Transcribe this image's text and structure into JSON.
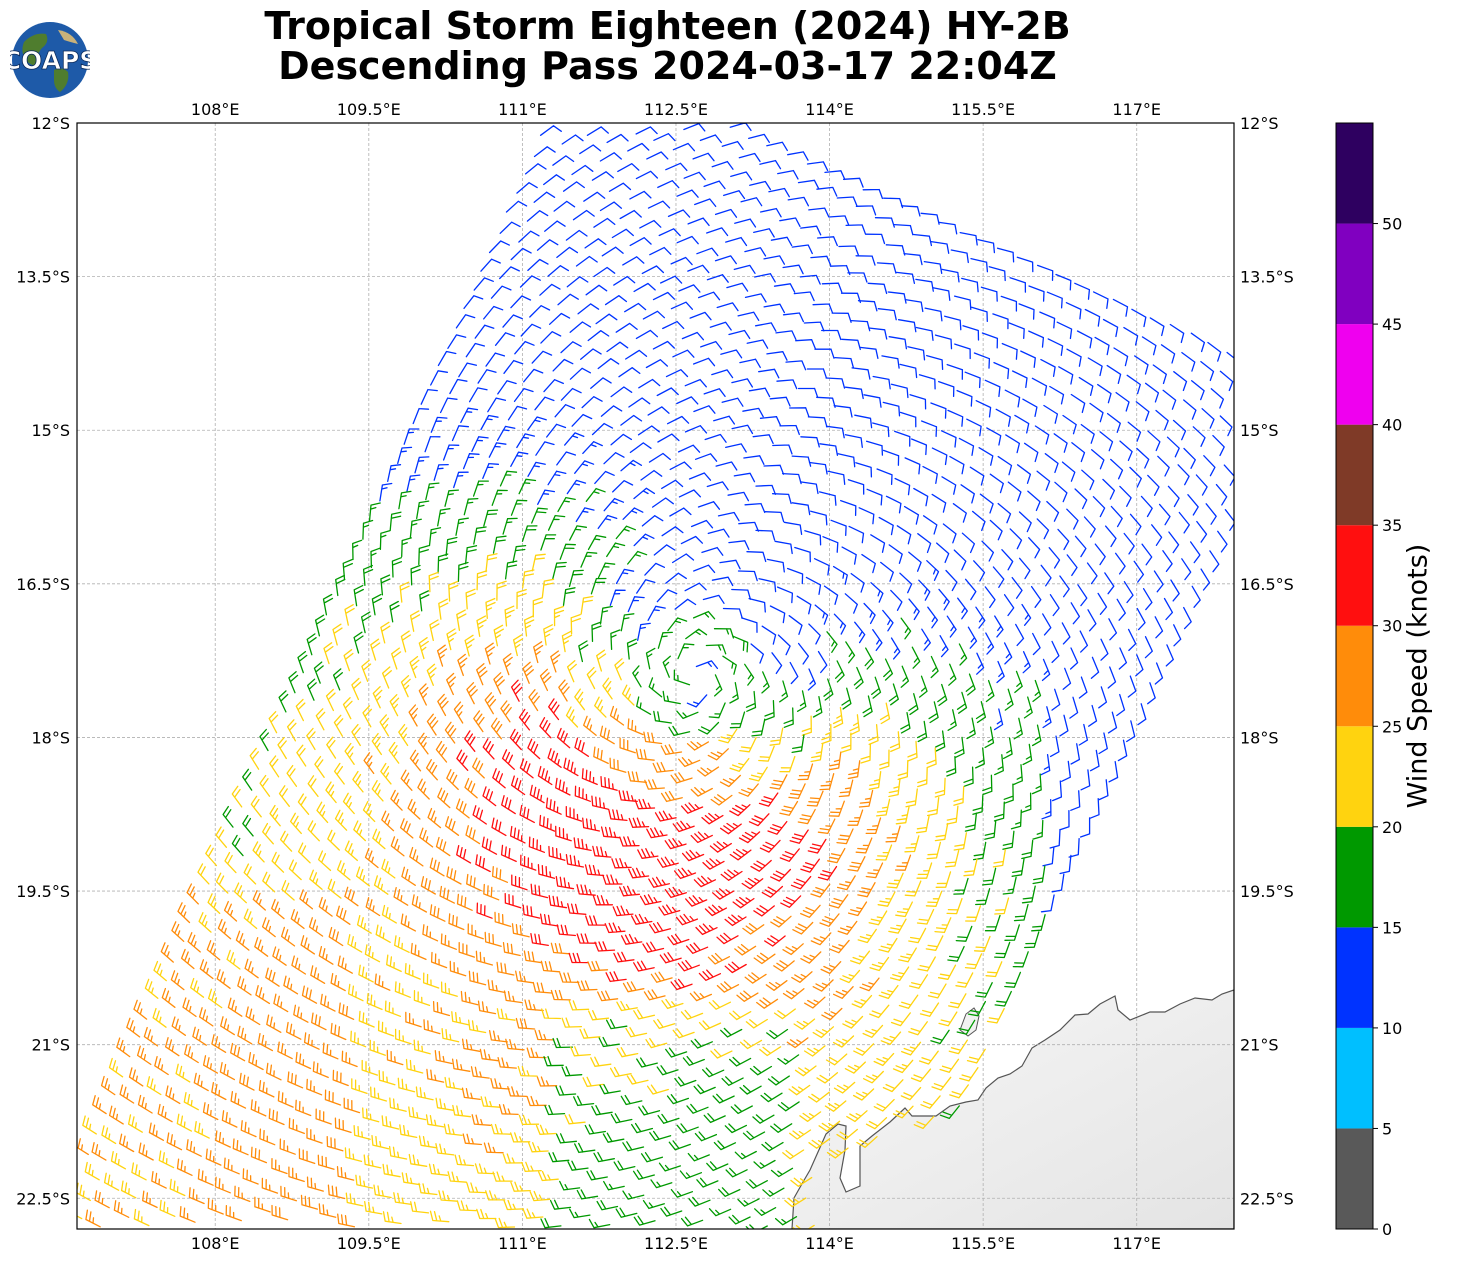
{
  "title": {
    "line1": "Tropical Storm Eighteen (2024) HY-2B",
    "line2": "Descending Pass 2024-03-17 22:04Z"
  },
  "logo": {
    "text": "COAPS",
    "icon": "globe-logo-icon"
  },
  "map": {
    "lon_range": [
      106.65,
      117.95
    ],
    "lat_range": [
      -22.8,
      -12.0
    ],
    "lon_ticks": [
      "108°E",
      "109.5°E",
      "111°E",
      "112.5°E",
      "114°E",
      "115.5°E",
      "117°E"
    ],
    "lon_tick_values": [
      108,
      109.5,
      111,
      112.5,
      114,
      115.5,
      117
    ],
    "lat_ticks": [
      "12°S",
      "13.5°S",
      "15°S",
      "16.5°S",
      "18°S",
      "19.5°S",
      "21°S",
      "22.5°S"
    ],
    "lat_tick_values": [
      -12,
      -13.5,
      -15,
      -16.5,
      -18,
      -19.5,
      -21,
      -22.5
    ],
    "gridlines": true,
    "land_color": "#f0f0f0",
    "coast_color": "#555555",
    "storm_center": {
      "lon": 112.7,
      "lat": -17.4
    }
  },
  "colorbar": {
    "label": "Wind Speed (knots)",
    "ticks": [
      "0",
      "5",
      "10",
      "15",
      "20",
      "25",
      "30",
      "35",
      "40",
      "45",
      "50"
    ],
    "segments": [
      {
        "from": 0,
        "to": 5,
        "color": "#595959"
      },
      {
        "from": 5,
        "to": 10,
        "color": "#00bfff"
      },
      {
        "from": 10,
        "to": 15,
        "color": "#0033ff"
      },
      {
        "from": 15,
        "to": 20,
        "color": "#009900"
      },
      {
        "from": 20,
        "to": 25,
        "color": "#ffd30f"
      },
      {
        "from": 25,
        "to": 30,
        "color": "#ff8c0a"
      },
      {
        "from": 30,
        "to": 35,
        "color": "#ff0f0f"
      },
      {
        "from": 35,
        "to": 40,
        "color": "#7f3a27"
      },
      {
        "from": 40,
        "to": 45,
        "color": "#ef00ef"
      },
      {
        "from": 45,
        "to": 50,
        "color": "#8000c0"
      },
      {
        "from": 50,
        "to": 55,
        "color": "#2e0060"
      }
    ]
  }
}
